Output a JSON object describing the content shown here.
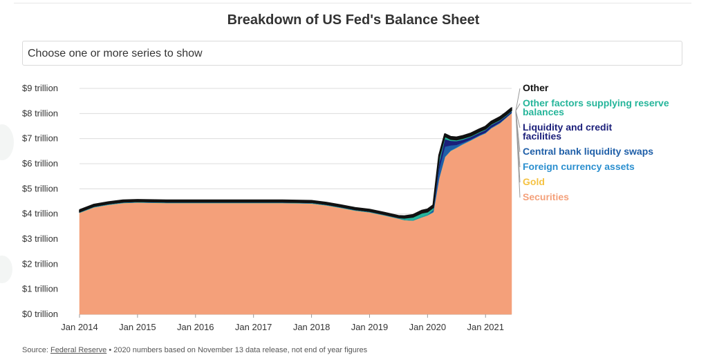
{
  "title": "Breakdown of US Fed's Balance Sheet",
  "selector": {
    "placeholder": "Choose one or more series to show"
  },
  "source": {
    "prefix": "Source: ",
    "link_text": "Federal Reserve",
    "note": " • 2020 numbers based on November 13 data release, not end of year figures"
  },
  "chart_data": {
    "type": "area",
    "stacked": true,
    "x_unit": "years (decimal)",
    "xlim": [
      2014.0,
      2021.45
    ],
    "ylim": [
      0,
      9
    ],
    "ylabel": "",
    "xlabel": "",
    "grid": true,
    "legend_placement": "right",
    "y_tick_labels": [
      "$0 trillion",
      "$1 trillion",
      "$2 trillion",
      "$3 trillion",
      "$4 trillion",
      "$5 trillion",
      "$6 trillion",
      "$7 trillion",
      "$8 trillion",
      "$9 trillion"
    ],
    "y_ticks": [
      0,
      1,
      2,
      3,
      4,
      5,
      6,
      7,
      8,
      9
    ],
    "x_tick_labels": [
      "Jan 2014",
      "Jan 2015",
      "Jan 2016",
      "Jan 2017",
      "Jan 2018",
      "Jan 2019",
      "Jan 2020",
      "Jan 2021"
    ],
    "x_ticks": [
      2014,
      2015,
      2016,
      2017,
      2018,
      2019,
      2020,
      2021
    ],
    "x": [
      2014.0,
      2014.25,
      2014.5,
      2014.75,
      2015.0,
      2015.5,
      2016.0,
      2016.5,
      2017.0,
      2017.5,
      2018.0,
      2018.25,
      2018.5,
      2018.75,
      2019.0,
      2019.25,
      2019.5,
      2019.6,
      2019.75,
      2019.9,
      2020.0,
      2020.1,
      2020.2,
      2020.3,
      2020.4,
      2020.5,
      2020.6,
      2020.75,
      2020.9,
      2021.0,
      2021.1,
      2021.25,
      2021.35,
      2021.45
    ],
    "series": [
      {
        "name": "Securities",
        "color": "#f4a07a",
        "values": [
          4.03,
          4.25,
          4.35,
          4.42,
          4.44,
          4.42,
          4.42,
          4.42,
          4.42,
          4.42,
          4.4,
          4.33,
          4.23,
          4.12,
          4.05,
          3.93,
          3.8,
          3.74,
          3.72,
          3.85,
          3.93,
          4.05,
          5.4,
          6.25,
          6.5,
          6.62,
          6.75,
          6.92,
          7.1,
          7.2,
          7.4,
          7.6,
          7.8,
          8.0
        ]
      },
      {
        "name": "Gold",
        "color": "#f5c242",
        "values": [
          0.01,
          0.01,
          0.01,
          0.01,
          0.01,
          0.01,
          0.01,
          0.01,
          0.01,
          0.01,
          0.01,
          0.01,
          0.01,
          0.01,
          0.01,
          0.01,
          0.01,
          0.01,
          0.01,
          0.01,
          0.01,
          0.01,
          0.01,
          0.01,
          0.01,
          0.01,
          0.01,
          0.01,
          0.01,
          0.01,
          0.01,
          0.01,
          0.01,
          0.01
        ]
      },
      {
        "name": "Foreign currency assets",
        "color": "#2b8fcf",
        "values": [
          0.02,
          0.02,
          0.02,
          0.02,
          0.02,
          0.02,
          0.02,
          0.02,
          0.02,
          0.02,
          0.02,
          0.02,
          0.02,
          0.02,
          0.02,
          0.02,
          0.02,
          0.02,
          0.02,
          0.02,
          0.02,
          0.02,
          0.02,
          0.02,
          0.02,
          0.02,
          0.02,
          0.02,
          0.02,
          0.02,
          0.02,
          0.02,
          0.02,
          0.02
        ]
      },
      {
        "name": "Central bank liquidity swaps",
        "color": "#1f5fa8",
        "values": [
          0.0,
          0.0,
          0.0,
          0.0,
          0.0,
          0.0,
          0.0,
          0.0,
          0.0,
          0.0,
          0.0,
          0.0,
          0.0,
          0.0,
          0.0,
          0.0,
          0.0,
          0.0,
          0.0,
          0.0,
          0.0,
          0.05,
          0.35,
          0.4,
          0.2,
          0.1,
          0.05,
          0.02,
          0.01,
          0.01,
          0.01,
          0.01,
          0.0,
          0.0
        ]
      },
      {
        "name": "Liquidity and credit facilities",
        "color": "#1b1f7a",
        "values": [
          0.0,
          0.0,
          0.0,
          0.0,
          0.0,
          0.0,
          0.0,
          0.0,
          0.0,
          0.0,
          0.0,
          0.0,
          0.0,
          0.0,
          0.0,
          0.0,
          0.0,
          0.0,
          0.0,
          0.0,
          0.0,
          0.02,
          0.25,
          0.3,
          0.18,
          0.15,
          0.12,
          0.1,
          0.1,
          0.1,
          0.1,
          0.08,
          0.06,
          0.05
        ]
      },
      {
        "name": "Other factors supplying reserve balances",
        "color": "#25b59a",
        "values": [
          0.02,
          0.02,
          0.02,
          0.02,
          0.02,
          0.02,
          0.02,
          0.02,
          0.02,
          0.02,
          0.02,
          0.02,
          0.02,
          0.02,
          0.02,
          0.02,
          0.02,
          0.06,
          0.12,
          0.15,
          0.12,
          0.1,
          0.2,
          0.1,
          0.06,
          0.05,
          0.05,
          0.04,
          0.04,
          0.04,
          0.04,
          0.04,
          0.04,
          0.04
        ]
      },
      {
        "name": "Other",
        "color": "#111111",
        "values": [
          0.07,
          0.07,
          0.07,
          0.07,
          0.07,
          0.07,
          0.07,
          0.07,
          0.07,
          0.07,
          0.07,
          0.07,
          0.07,
          0.07,
          0.07,
          0.07,
          0.07,
          0.08,
          0.09,
          0.1,
          0.1,
          0.1,
          0.1,
          0.1,
          0.1,
          0.1,
          0.1,
          0.1,
          0.1,
          0.1,
          0.1,
          0.1,
          0.1,
          0.1
        ]
      }
    ]
  }
}
